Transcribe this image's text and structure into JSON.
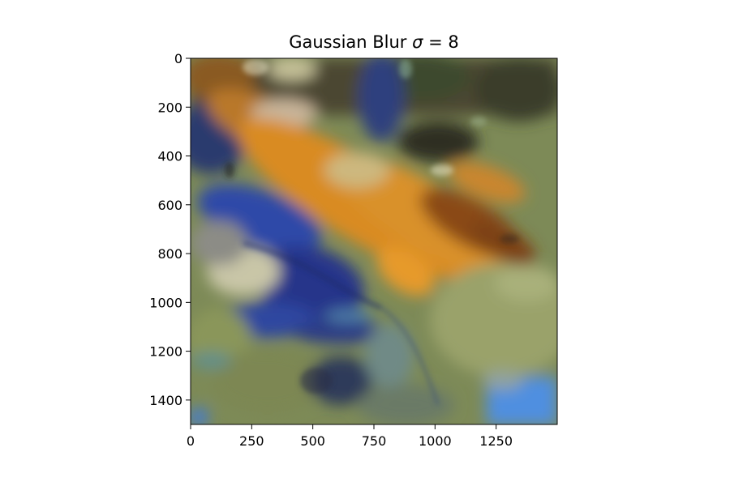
{
  "chart_data": {
    "type": "heatmap",
    "title": "Gaussian Blur σ = 8",
    "title_text": "Gaussian Blur ",
    "title_symbol": "σ",
    "title_eq": " = 8",
    "xlabel": "",
    "ylabel": "",
    "xlim": [
      0,
      1500
    ],
    "ylim": [
      1500,
      0
    ],
    "x_ticks": [
      0,
      250,
      500,
      750,
      1000,
      1250
    ],
    "y_ticks": [
      0,
      200,
      400,
      600,
      800,
      1000,
      1200,
      1400
    ],
    "x_tick_labels": [
      "0",
      "250",
      "500",
      "750",
      "1000",
      "1250"
    ],
    "y_tick_labels": [
      "0",
      "200",
      "400",
      "600",
      "800",
      "1000",
      "1200",
      "1400"
    ],
    "grid": false,
    "colors": {
      "navy": "#1f2a6e",
      "blue": "#2d4aa8",
      "orange": "#d98b22",
      "brown": "#8a4a14",
      "olive": "#8f9a5a",
      "sage": "#a4ae76",
      "dark": "#3d3f30",
      "pale": "#c9c6a7",
      "teal": "#5f8f8c",
      "skyblue": "#4f8fe0"
    }
  }
}
